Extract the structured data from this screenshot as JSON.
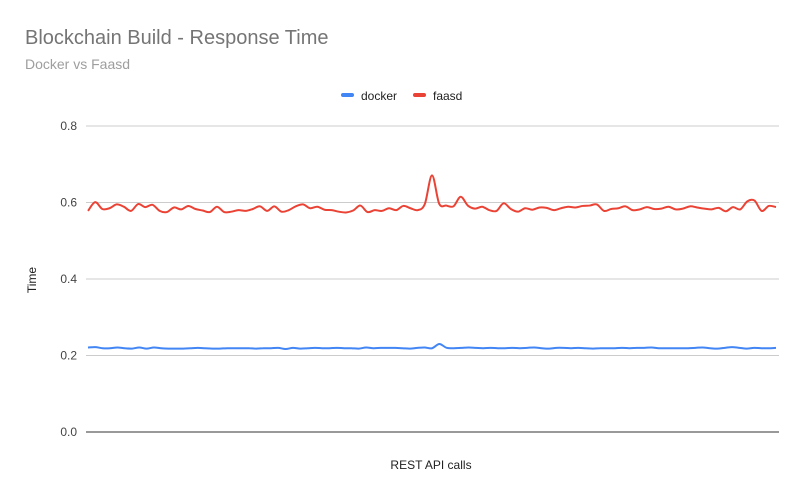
{
  "chart_data": {
    "type": "line",
    "title": "Blockchain Build - Response Time",
    "subtitle": "Docker vs Faasd",
    "xlabel": "REST API calls",
    "ylabel": "Time",
    "ylim": [
      0,
      0.8
    ],
    "yticks": [
      "0.0",
      "0.2",
      "0.4",
      "0.6",
      "0.8"
    ],
    "ytick_values": [
      0,
      0.2,
      0.4,
      0.6,
      0.8
    ],
    "grid": true,
    "legend_position": "top",
    "series": [
      {
        "name": "docker",
        "color": "#4285f4",
        "values": [
          0.221,
          0.222,
          0.219,
          0.219,
          0.221,
          0.219,
          0.218,
          0.221,
          0.218,
          0.221,
          0.219,
          0.218,
          0.218,
          0.218,
          0.219,
          0.22,
          0.219,
          0.218,
          0.218,
          0.219,
          0.219,
          0.219,
          0.219,
          0.218,
          0.219,
          0.219,
          0.22,
          0.217,
          0.22,
          0.218,
          0.219,
          0.22,
          0.219,
          0.219,
          0.22,
          0.219,
          0.219,
          0.218,
          0.221,
          0.219,
          0.22,
          0.22,
          0.22,
          0.219,
          0.218,
          0.22,
          0.221,
          0.219,
          0.23,
          0.22,
          0.219,
          0.22,
          0.221,
          0.22,
          0.219,
          0.22,
          0.219,
          0.219,
          0.22,
          0.219,
          0.22,
          0.221,
          0.219,
          0.218,
          0.22,
          0.22,
          0.219,
          0.22,
          0.219,
          0.218,
          0.219,
          0.219,
          0.219,
          0.22,
          0.219,
          0.22,
          0.22,
          0.221,
          0.219,
          0.219,
          0.219,
          0.219,
          0.219,
          0.22,
          0.221,
          0.219,
          0.218,
          0.22,
          0.222,
          0.22,
          0.218,
          0.22,
          0.219,
          0.219,
          0.22
        ]
      },
      {
        "name": "faasd",
        "color": "#ea4335",
        "values": [
          0.578,
          0.601,
          0.583,
          0.585,
          0.595,
          0.589,
          0.578,
          0.596,
          0.588,
          0.594,
          0.578,
          0.575,
          0.587,
          0.582,
          0.591,
          0.583,
          0.579,
          0.575,
          0.589,
          0.575,
          0.576,
          0.58,
          0.578,
          0.583,
          0.59,
          0.578,
          0.59,
          0.576,
          0.58,
          0.59,
          0.595,
          0.585,
          0.589,
          0.581,
          0.58,
          0.576,
          0.574,
          0.579,
          0.592,
          0.575,
          0.58,
          0.578,
          0.585,
          0.58,
          0.591,
          0.585,
          0.58,
          0.596,
          0.671,
          0.597,
          0.592,
          0.59,
          0.615,
          0.592,
          0.584,
          0.589,
          0.58,
          0.578,
          0.598,
          0.583,
          0.576,
          0.585,
          0.581,
          0.587,
          0.586,
          0.58,
          0.585,
          0.589,
          0.587,
          0.591,
          0.592,
          0.595,
          0.578,
          0.583,
          0.585,
          0.59,
          0.58,
          0.582,
          0.588,
          0.583,
          0.584,
          0.589,
          0.582,
          0.584,
          0.59,
          0.587,
          0.584,
          0.582,
          0.586,
          0.577,
          0.588,
          0.582,
          0.603,
          0.605,
          0.578,
          0.591,
          0.588
        ]
      }
    ]
  }
}
